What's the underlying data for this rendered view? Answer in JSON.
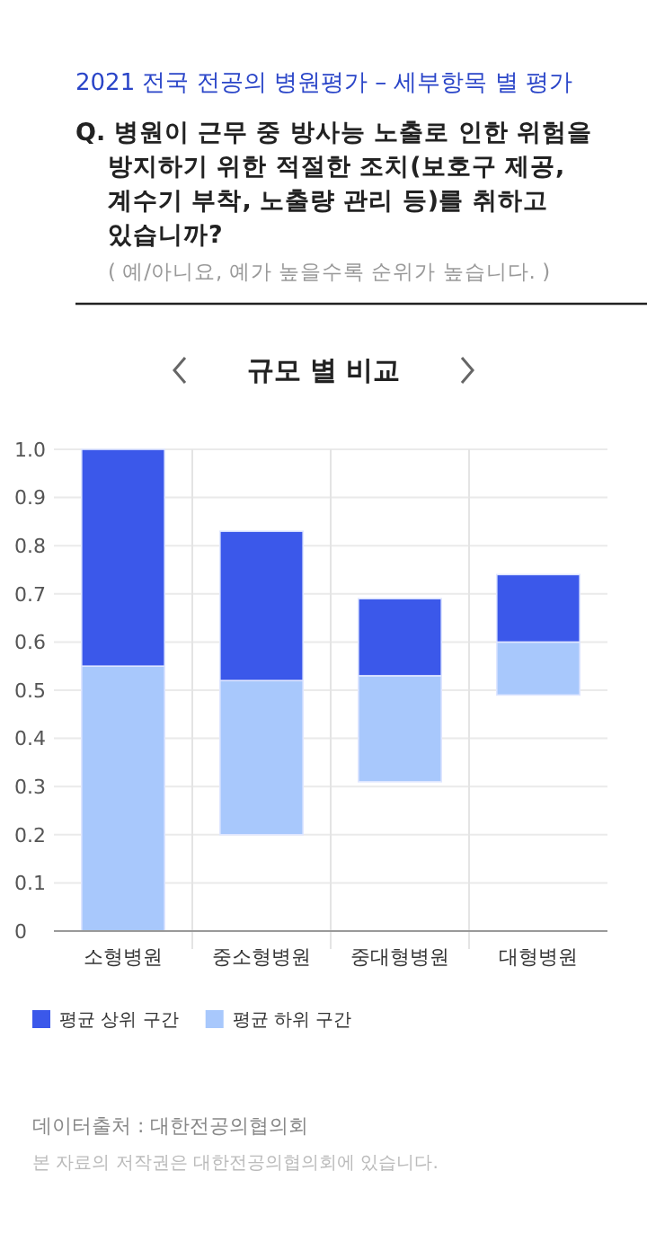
{
  "chart_data": {
    "type": "bar",
    "title": "2021 전국 전공의 병원평가 – 세부항목 별 평가",
    "subtitle": "Q. 병원이 근무 중 방사능 노출로 인한 위험을 방지하기 위한 적절한 조치(보호구 제공, 계수기 부착, 노출량 관리 등)를 취하고 있습니까?",
    "annotations": [
      "( 예/아니요, 예가 높을수록 순위가 높습니다. )",
      "규모 별 비교",
      "데이터출처 : 대한전공의협의회",
      "본 자료의 저작권은 대한전공의협의회에 있습니다."
    ],
    "categories": [
      "소형병원",
      "중소형병원",
      "중대형병원",
      "대형병원"
    ],
    "series": [
      {
        "name": "평균 하위 구간",
        "color": "#a8c8fc",
        "base": [
          0,
          0.2,
          0.31,
          0.49
        ],
        "values": [
          0.55,
          0.32,
          0.22,
          0.11
        ]
      },
      {
        "name": "평균 상위 구간",
        "color": "#3b58ea",
        "base": [
          0.55,
          0.52,
          0.53,
          0.6
        ],
        "values": [
          0.45,
          0.31,
          0.16,
          0.14
        ]
      }
    ],
    "ylim": [
      0,
      1
    ],
    "yticks": [
      0,
      0.1,
      0.2,
      0.3,
      0.4,
      0.5,
      0.6,
      0.7,
      0.8,
      0.9,
      {
        "value": 1,
        "label": "1.0"
      }
    ],
    "grid": true,
    "legend": "bottom left"
  }
}
